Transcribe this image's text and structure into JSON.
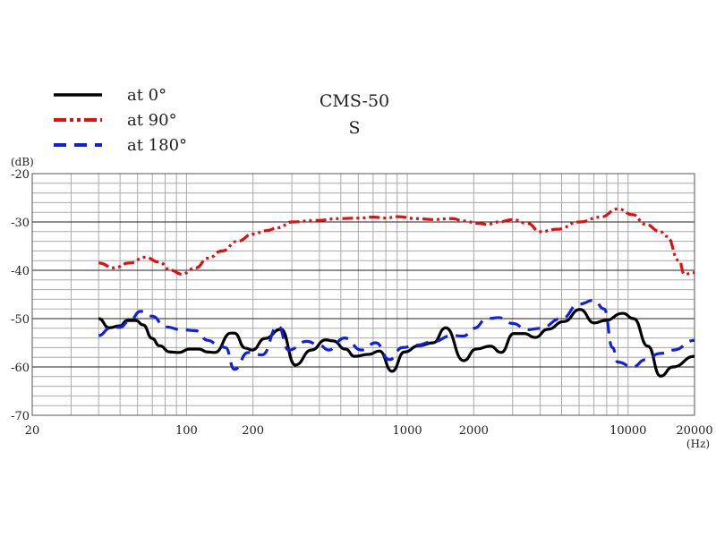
{
  "chart_data": {
    "type": "line",
    "title": "CMS-50",
    "subtitle": "S",
    "xlabel": "(Hz)",
    "ylabel": "(dB)",
    "xscale": "log",
    "xlim": [
      20,
      20000
    ],
    "ylim": [
      -70,
      -20
    ],
    "xticks": [
      20,
      100,
      200,
      1000,
      2000,
      10000,
      20000
    ],
    "xtick_labels": [
      "20",
      "100",
      "200",
      "1000",
      "2000",
      "10000",
      "20000"
    ],
    "yticks": [
      -20,
      -30,
      -40,
      -50,
      -60,
      -70
    ],
    "ytick_labels": [
      "-20",
      "-30",
      "-40",
      "-50",
      "-60",
      "-70"
    ],
    "grid": true,
    "legend_position": "top-left",
    "series": [
      {
        "name": "at 0°",
        "color": "#000000",
        "style": "solid",
        "x": [
          40,
          44.6,
          49.9,
          53.8,
          59,
          63.6,
          69.9,
          75.3,
          84.2,
          92.4,
          103,
          113.5,
          124.6,
          134.3,
          158.9,
          164.9,
          184.5,
          198.7,
          226.5,
          268,
          311,
          368,
          427,
          460,
          525,
          576,
          669,
          748,
          853,
          971,
          1128,
          1309,
          1493,
          1799,
          2051,
          2378,
          2661,
          3033,
          3394,
          3796,
          4327,
          5118,
          6055,
          7031,
          7857,
          9466,
          10594,
          12297,
          14021,
          15966,
          20000
        ],
        "y": [
          -50.0,
          -51.9,
          -51.5,
          -50.4,
          -50.4,
          -51.3,
          -54.1,
          -55.6,
          -56.9,
          -57.0,
          -56.3,
          -56.3,
          -56.9,
          -57.0,
          -53.0,
          -53.0,
          -56.1,
          -56.5,
          -54.1,
          -52.2,
          -59.6,
          -56.5,
          -54.4,
          -54.6,
          -56.3,
          -57.8,
          -57.4,
          -56.7,
          -60.9,
          -56.9,
          -55.6,
          -55.0,
          -51.9,
          -58.7,
          -56.3,
          -55.7,
          -57.0,
          -53.1,
          -53.1,
          -53.9,
          -52.2,
          -50.6,
          -48.1,
          -50.9,
          -50.4,
          -48.9,
          -50.0,
          -55.7,
          -61.9,
          -60.0,
          -57.8
        ]
      },
      {
        "name": "at 90°",
        "color": "#e01010",
        "style": "dash-dot-dot",
        "x": [
          40,
          47,
          55,
          65,
          75,
          85,
          95,
          110,
          125,
          145,
          170,
          200,
          230,
          260,
          300,
          380,
          500,
          600,
          700,
          800,
          900,
          1100,
          1300,
          1600,
          1800,
          2100,
          2300,
          2600,
          3000,
          3500,
          4000,
          4800,
          6000,
          7500,
          9000,
          10500,
          12000,
          14000,
          15000,
          17000,
          18000,
          20000
        ],
        "y": [
          -38.5,
          -39.5,
          -38.5,
          -37.3,
          -38.3,
          -40.0,
          -40.8,
          -39.5,
          -37.5,
          -36.0,
          -34.0,
          -32.5,
          -31.8,
          -31.2,
          -30.0,
          -29.7,
          -29.3,
          -29.2,
          -29.0,
          -29.2,
          -28.9,
          -29.3,
          -29.5,
          -29.3,
          -29.8,
          -30.3,
          -30.5,
          -30.0,
          -29.5,
          -30.3,
          -32.0,
          -31.5,
          -30.0,
          -29.0,
          -27.3,
          -28.5,
          -30.5,
          -32.0,
          -33.0,
          -38.0,
          -40.8,
          -40.5
        ]
      },
      {
        "name": "at 180°",
        "color": "#1020e0",
        "style": "dashed",
        "x": [
          40,
          45,
          50,
          55,
          62,
          70,
          80,
          95,
          110,
          125,
          140,
          150,
          165,
          190,
          220,
          260,
          290,
          350,
          400,
          440,
          520,
          620,
          720,
          830,
          950,
          1100,
          1300,
          1600,
          1800,
          2000,
          2300,
          2600,
          3000,
          3500,
          4000,
          5000,
          6000,
          7000,
          7800,
          8500,
          9000,
          10500,
          12000,
          14000,
          16000,
          20000
        ],
        "y": [
          -53.5,
          -52.0,
          -51.8,
          -50.5,
          -48.5,
          -49.5,
          -51.7,
          -52.3,
          -52.5,
          -54.5,
          -55.5,
          -56.0,
          -60.5,
          -57.0,
          -57.5,
          -51.5,
          -56.5,
          -54.7,
          -55.5,
          -56.5,
          -54.0,
          -56.5,
          -55.0,
          -58.5,
          -56.0,
          -55.5,
          -54.8,
          -53.5,
          -53.6,
          -52.0,
          -50.0,
          -49.8,
          -51.0,
          -52.3,
          -52.0,
          -50.0,
          -47.0,
          -46.2,
          -48.0,
          -56.0,
          -59.0,
          -60.0,
          -58.5,
          -57.2,
          -56.5,
          -54.5
        ]
      }
    ]
  }
}
